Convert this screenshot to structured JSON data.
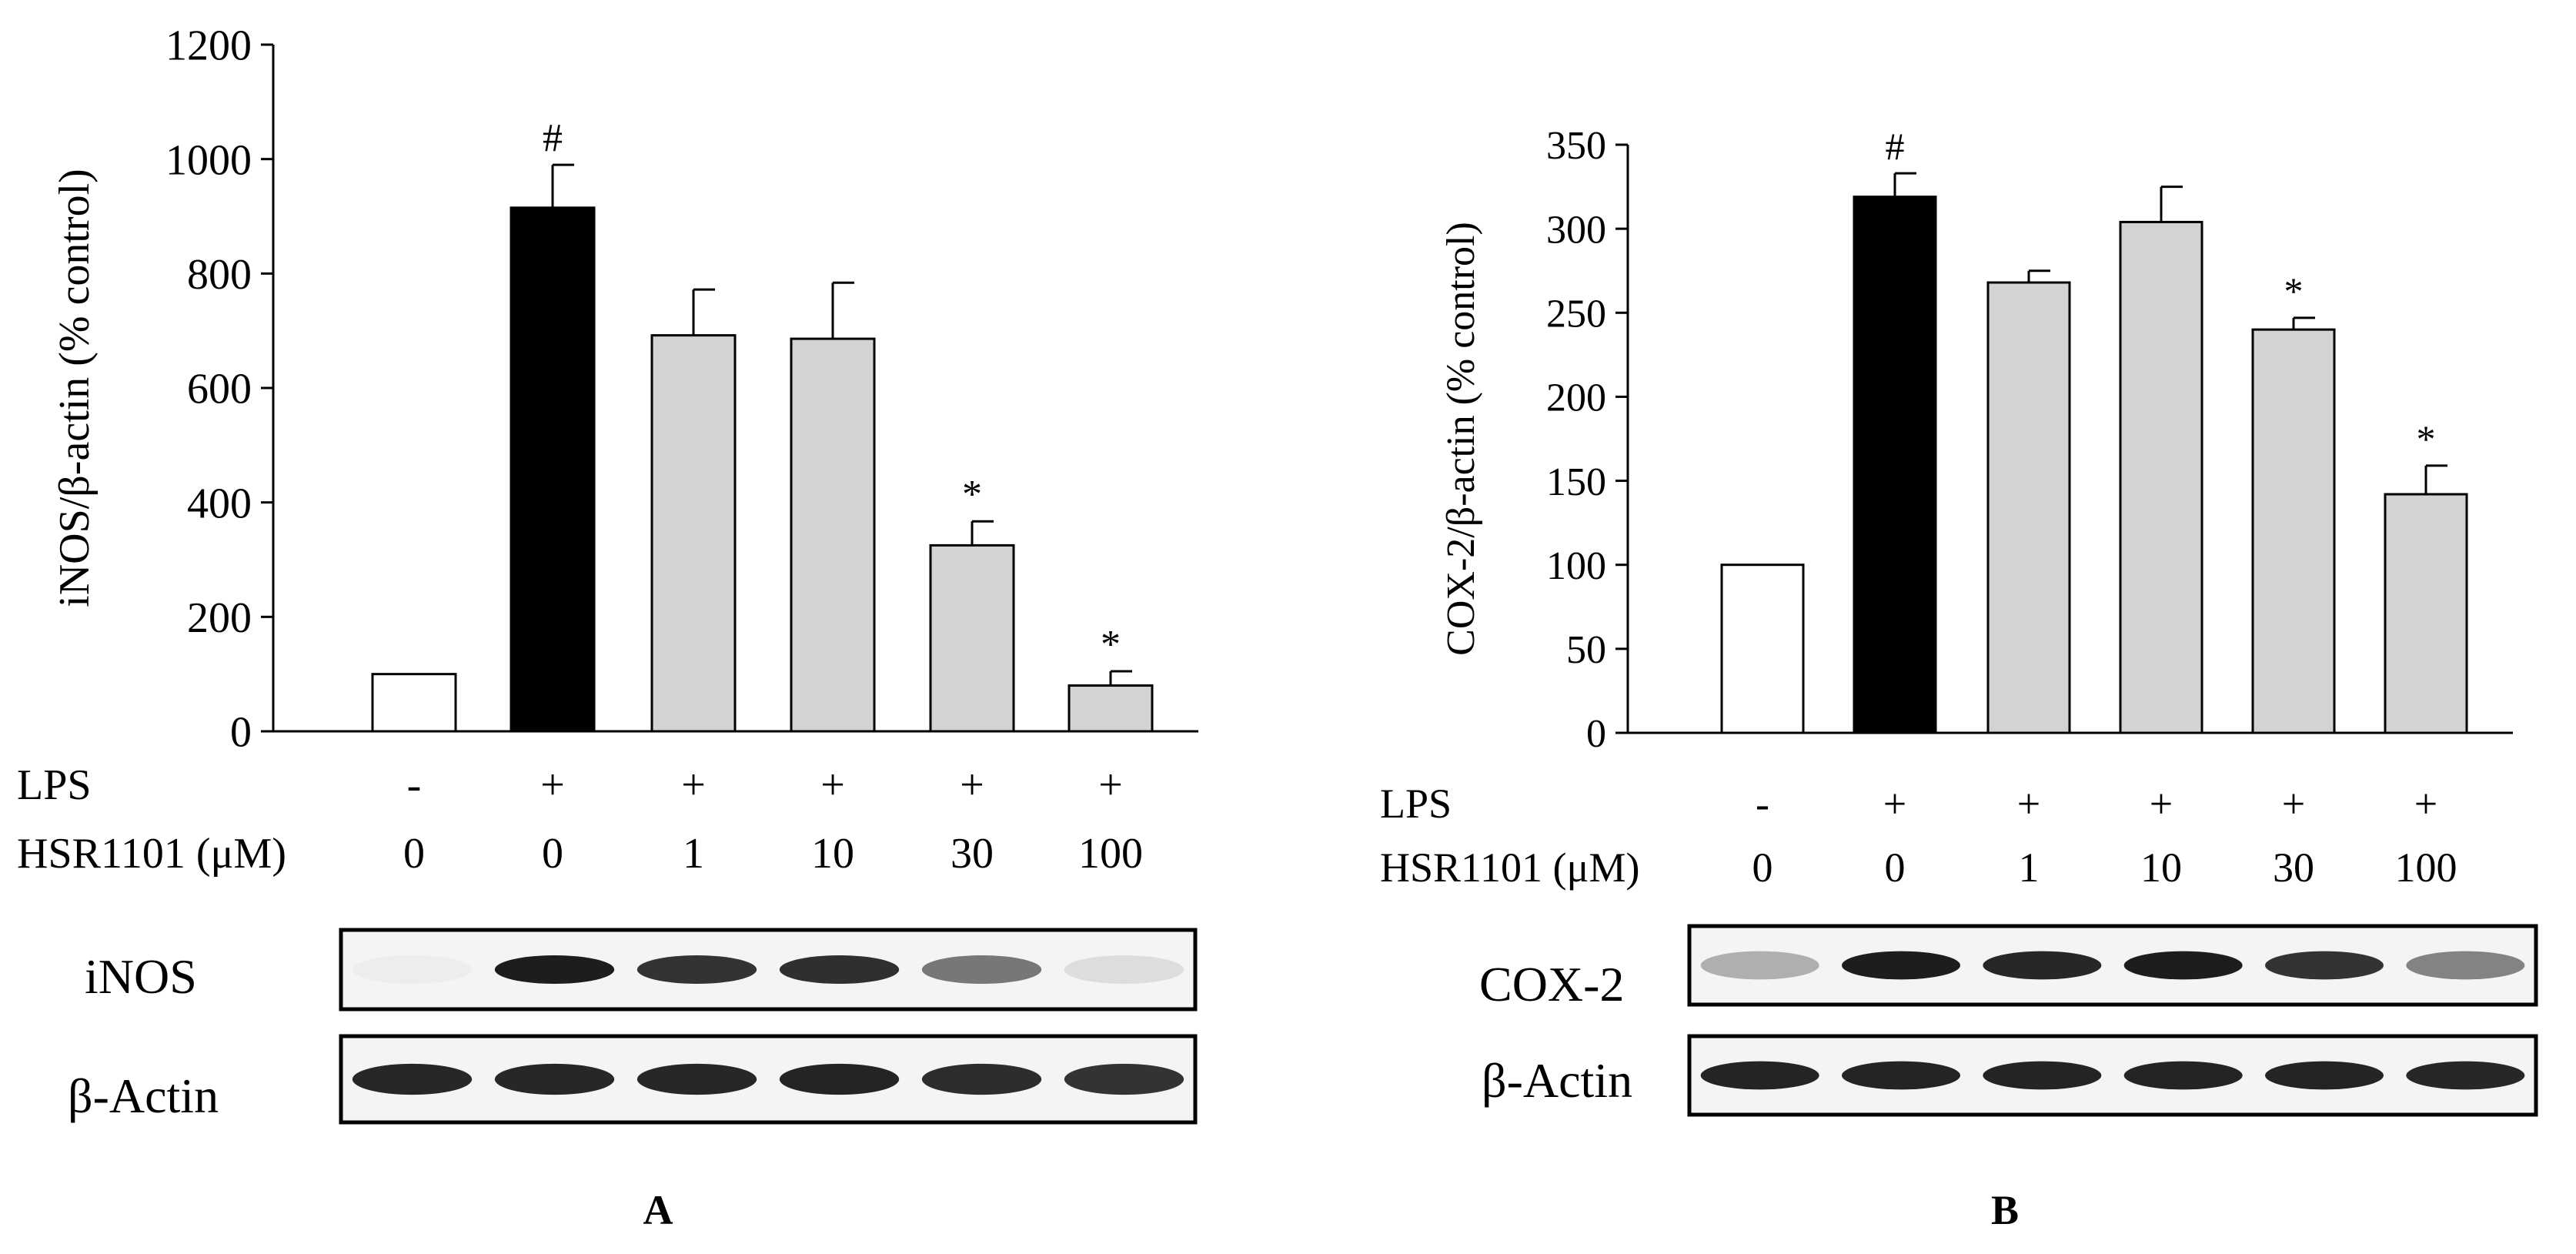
{
  "panels": [
    {
      "letter": "A",
      "ylabel": "iNOS/β-actin (% control)",
      "yticks": [
        0,
        200,
        400,
        600,
        800,
        1000,
        1200
      ],
      "row_labels": {
        "lps": "LPS",
        "hsr": "HSR1101 (μM)"
      },
      "lps_signs": [
        "-",
        "+",
        "+",
        "+",
        "+",
        "+"
      ],
      "doses": [
        "0",
        "0",
        "1",
        "10",
        "30",
        "100"
      ],
      "blot_labels": [
        "iNOS",
        "β-Actin"
      ]
    },
    {
      "letter": "B",
      "ylabel": "COX-2/β-actin (% control)",
      "yticks": [
        0,
        50,
        100,
        150,
        200,
        250,
        300,
        350
      ],
      "row_labels": {
        "lps": "LPS",
        "hsr": "HSR1101 (μM)"
      },
      "lps_signs": [
        "-",
        "+",
        "+",
        "+",
        "+",
        "+"
      ],
      "doses": [
        "0",
        "0",
        "1",
        "10",
        "30",
        "100"
      ],
      "blot_labels": [
        "COX-2",
        "β-Actin"
      ]
    }
  ],
  "chart_data": [
    {
      "type": "bar",
      "ylabel": "iNOS/β-actin (% control)",
      "ylim": [
        0,
        1200
      ],
      "categories": [
        "0",
        "0",
        "1",
        "10",
        "30",
        "100"
      ],
      "values": [
        100,
        915,
        692,
        686,
        325,
        80
      ],
      "errors": [
        0,
        75,
        80,
        98,
        42,
        25
      ],
      "annotations": [
        "",
        "#",
        "",
        "",
        "*",
        "*"
      ],
      "bar_colors": [
        "#ffffff",
        "#000000",
        "#d3d3d3",
        "#d3d3d3",
        "#d3d3d3",
        "#d3d3d3"
      ],
      "grid": false
    },
    {
      "type": "bar",
      "ylabel": "COX-2/β-actin (% control)",
      "ylim": [
        0,
        350
      ],
      "categories": [
        "0",
        "0",
        "1",
        "10",
        "30",
        "100"
      ],
      "values": [
        100,
        319,
        268,
        304,
        240,
        142
      ],
      "errors": [
        0,
        14,
        7,
        21,
        7,
        17
      ],
      "annotations": [
        "",
        "#",
        "",
        "",
        "*",
        "*"
      ],
      "bar_colors": [
        "#ffffff",
        "#000000",
        "#d3d3d3",
        "#d3d3d3",
        "#d3d3d3",
        "#d3d3d3"
      ],
      "grid": false
    }
  ],
  "blots": [
    {
      "label": "iNOS",
      "intensity": [
        0.03,
        0.95,
        0.85,
        0.87,
        0.55,
        0.1
      ]
    },
    {
      "label": "β-Actin",
      "intensity": [
        0.9,
        0.9,
        0.9,
        0.92,
        0.88,
        0.85
      ]
    },
    {
      "label": "COX-2",
      "intensity": [
        0.3,
        0.95,
        0.9,
        0.95,
        0.85,
        0.5
      ]
    },
    {
      "label": "β-Actin",
      "intensity": [
        0.92,
        0.92,
        0.92,
        0.92,
        0.92,
        0.9
      ]
    }
  ]
}
